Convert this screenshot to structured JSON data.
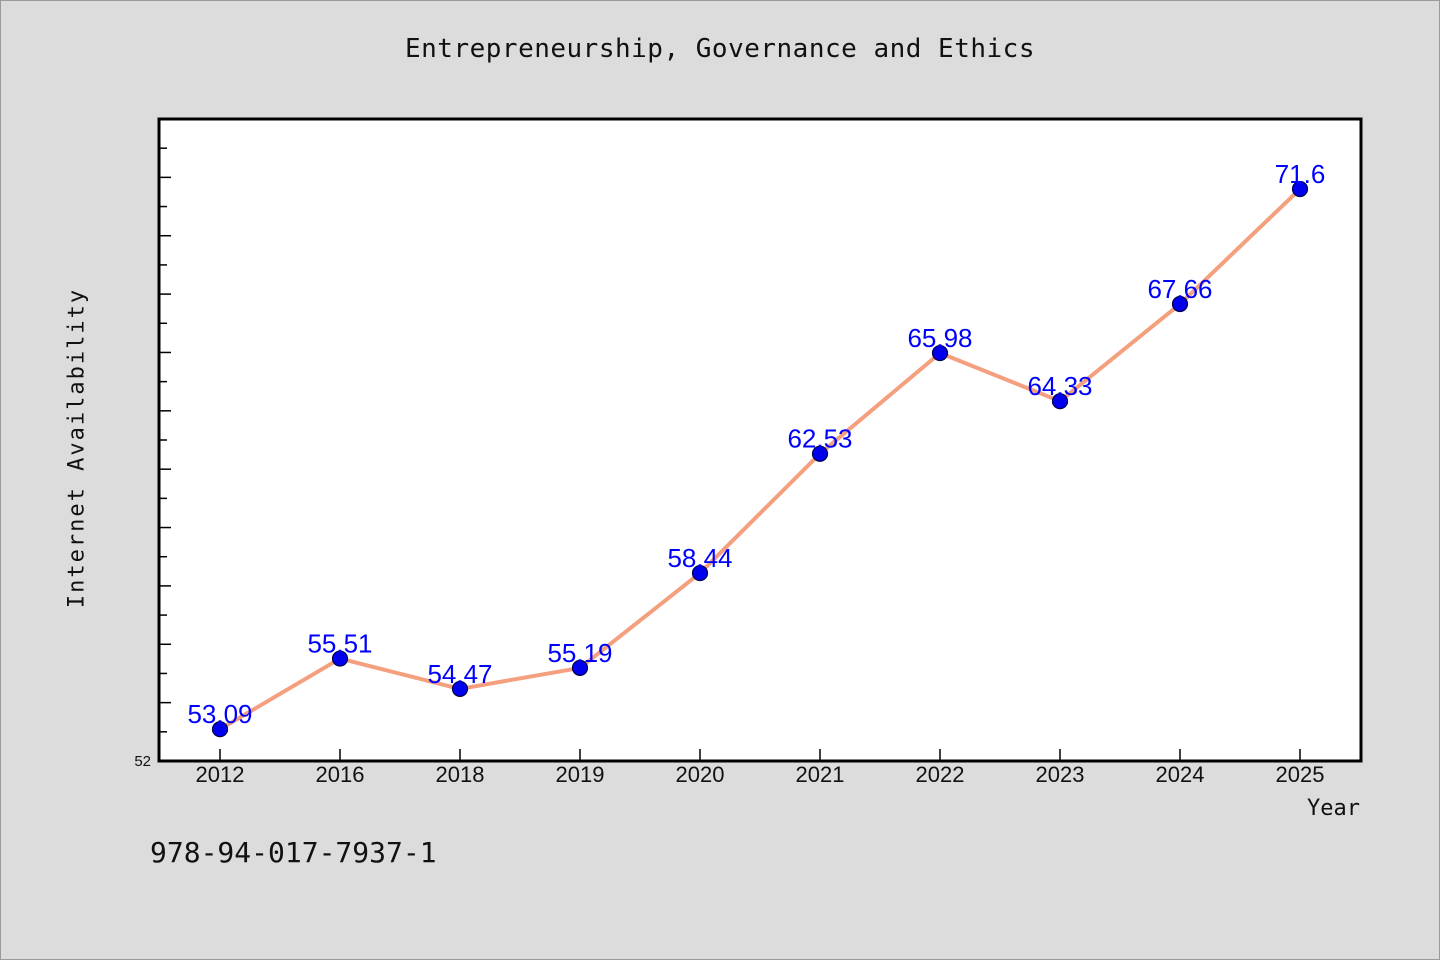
{
  "chart_data": {
    "type": "line",
    "title": "Entrepreneurship, Governance and Ethics",
    "xlabel": "Year",
    "ylabel": "Internet Availability",
    "categories": [
      "2012",
      "2016",
      "2018",
      "2019",
      "2020",
      "2021",
      "2022",
      "2023",
      "2024",
      "2025"
    ],
    "series": [
      {
        "values": [
          53.09,
          55.51,
          54.47,
          55.19,
          58.44,
          62.53,
          65.98,
          64.33,
          67.66,
          71.6
        ],
        "data_labels": [
          "53.09",
          "55.51",
          "54.47",
          "55.19",
          "58.44",
          "62.53",
          "65.98",
          "64.33",
          "67.66",
          "71.6"
        ]
      }
    ],
    "ylim": [
      52,
      74
    ],
    "y_tick_labels": [
      "52"
    ],
    "grid": false,
    "legend": "none",
    "colors": {
      "line": "#f4a07e",
      "marker": "#0000ee",
      "label": "#0000ff",
      "plot_bg": "#ffffff",
      "figure_bg": "#dcdcdc"
    }
  },
  "footer": {
    "isbn": "978-94-017-7937-1"
  }
}
